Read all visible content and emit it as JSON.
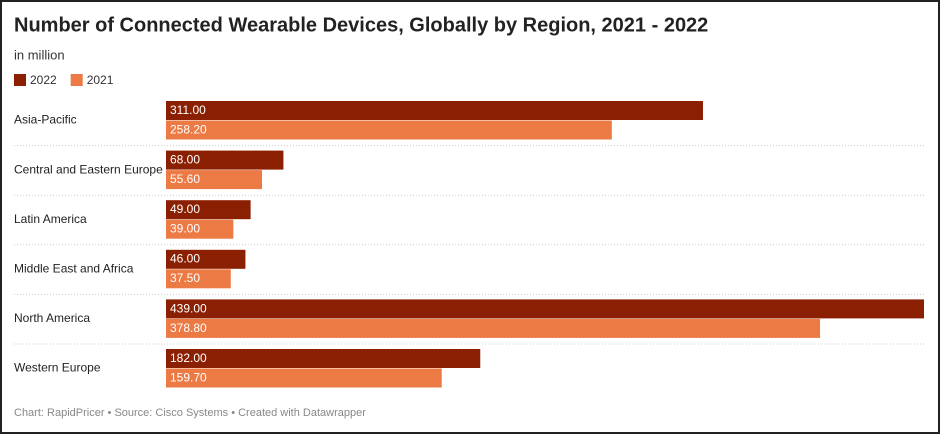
{
  "chart_data": {
    "type": "bar",
    "orientation": "horizontal",
    "title": "Number of Connected Wearable Devices, Globally by Region, 2021 - 2022",
    "subtitle": "in million",
    "categories": [
      "Asia-Pacific",
      "Central and Eastern Europe",
      "Latin America",
      "Middle East and Africa",
      "North America",
      "Western Europe"
    ],
    "series": [
      {
        "name": "2022",
        "color": "#8b1f02",
        "values": [
          311,
          68,
          49,
          46,
          439,
          182
        ],
        "value_labels": [
          "311.00",
          "68.00",
          "49.00",
          "46.00",
          "439.00",
          "182.00"
        ]
      },
      {
        "name": "2021",
        "color": "#ec7a45",
        "values": [
          258.2,
          55.6,
          39,
          37.5,
          378.8,
          159.7
        ],
        "value_labels": [
          "258.20",
          "55.60",
          "39.00",
          "37.50",
          "378.80",
          "159.70"
        ]
      }
    ],
    "legend": "top-left",
    "footer": "Chart: RapidPricer • Source: Cisco Systems • Created with Datawrapper"
  }
}
